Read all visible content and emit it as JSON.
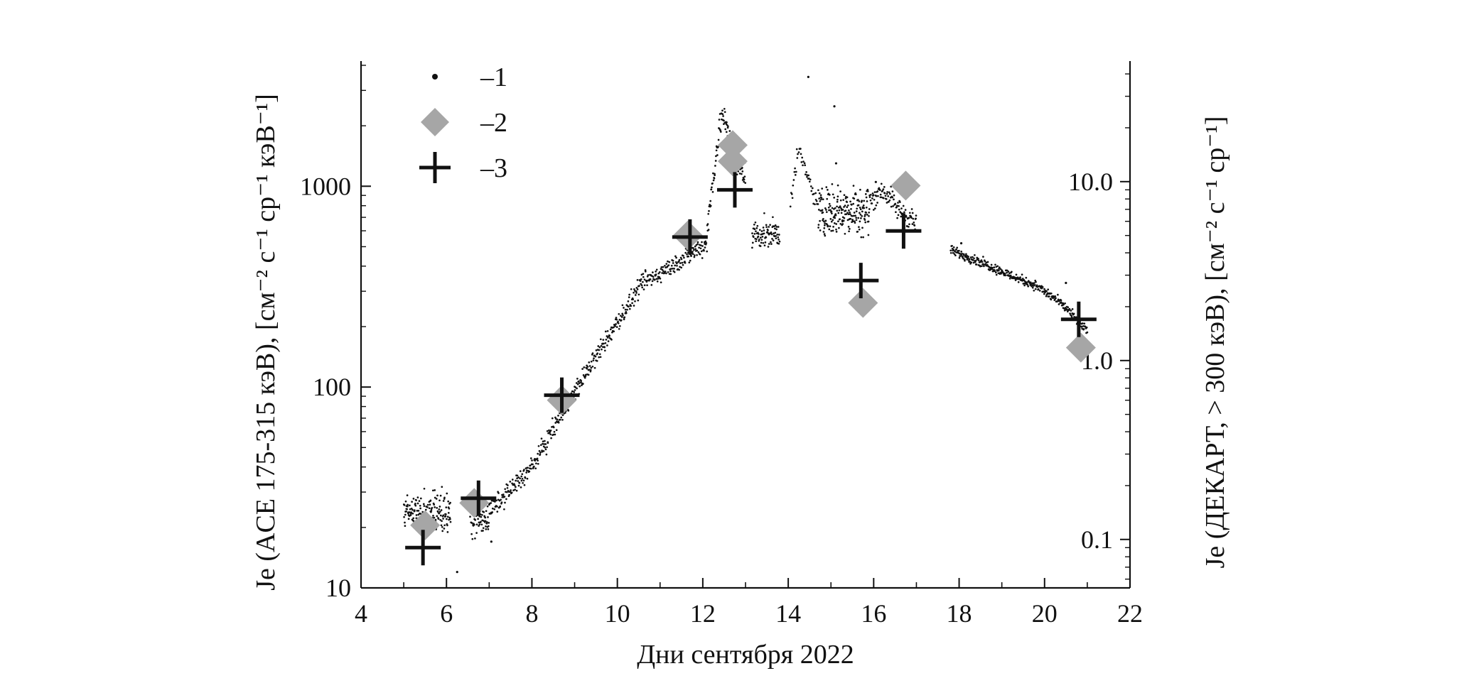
{
  "chart_data": {
    "type": "scatter",
    "xlabel": "Дни сентября 2022",
    "ylabel_left": "Je (ACE 175-315 кэВ), [см⁻² с⁻¹ ср⁻¹ кэВ⁻¹]",
    "ylabel_right": "Je (ДЕКАРТ, > 300 кэВ), [см⁻² с⁻¹ ср⁻¹]",
    "xlim": [
      4,
      22
    ],
    "ylim_left": [
      10,
      4200
    ],
    "ylim_right": [
      0.0536,
      47.2
    ],
    "yscale": "log",
    "grid": false,
    "legend_position": "top-left",
    "x_ticks": [
      4,
      6,
      8,
      10,
      12,
      14,
      16,
      18,
      20,
      22
    ],
    "y_left_ticks": [
      {
        "value": 10,
        "label": "10"
      },
      {
        "value": 100,
        "label": "100"
      },
      {
        "value": 1000,
        "label": "1000"
      }
    ],
    "y_right_ticks": [
      {
        "value": 0.1,
        "label": "0.1"
      },
      {
        "value": 1.0,
        "label": "1.0"
      },
      {
        "value": 10.0,
        "label": "10.0"
      }
    ],
    "legend": [
      {
        "key": "dots",
        "label": "–1",
        "color": "#111111"
      },
      {
        "key": "diamonds",
        "label": "–2",
        "color": "#a6a6a6"
      },
      {
        "key": "crosses",
        "label": "–3",
        "color": "#111111"
      }
    ],
    "series": [
      {
        "key": "dots",
        "axis": "left",
        "marker": "dot",
        "segments": [
          {
            "kind": "flat",
            "x": [
              5.0,
              6.1
            ],
            "y": [
              24,
              24
            ],
            "scatter": 0.12,
            "n": 170
          },
          {
            "kind": "flat",
            "x": [
              6.55,
              7.0
            ],
            "y": [
              22,
              22
            ],
            "scatter": 0.1,
            "n": 70
          },
          {
            "kind": "ramp",
            "x": [
              7.0,
              8.0,
              9.0,
              10.0,
              10.6,
              11.0,
              11.5,
              12.1
            ],
            "y": [
              24,
              40,
              95,
              210,
              330,
              370,
              430,
              520
            ],
            "scatter": 0.06,
            "n": 520
          },
          {
            "kind": "ramp",
            "x": [
              12.1,
              12.35,
              12.45,
              12.6,
              12.8,
              13.0
            ],
            "y": [
              600,
              1700,
              2300,
              1800,
              1300,
              1100
            ],
            "scatter": 0.09,
            "n": 110
          },
          {
            "kind": "flat",
            "x": [
              13.15,
              13.8
            ],
            "y": [
              580,
              580
            ],
            "scatter": 0.09,
            "n": 90
          },
          {
            "kind": "ramp",
            "x": [
              14.05,
              14.25,
              14.45,
              14.7
            ],
            "y": [
              850,
              1500,
              1100,
              800
            ],
            "scatter": 0.06,
            "n": 45
          },
          {
            "kind": "flat",
            "x": [
              14.7,
              15.9
            ],
            "y": [
              760,
              760
            ],
            "scatter": 0.15,
            "n": 210
          },
          {
            "kind": "ramp",
            "x": [
              15.9,
              16.2,
              16.6,
              17.0
            ],
            "y": [
              840,
              960,
              760,
              660
            ],
            "scatter": 0.07,
            "n": 110
          },
          {
            "kind": "ramp",
            "x": [
              17.8,
              18.5,
              19.2,
              19.8,
              20.4,
              21.0
            ],
            "y": [
              480,
              420,
              360,
              320,
              260,
              190
            ],
            "scatter": 0.03,
            "n": 340
          }
        ],
        "outliers": [
          {
            "x": 14.47,
            "y": 3500
          },
          {
            "x": 15.08,
            "y": 2500
          },
          {
            "x": 15.12,
            "y": 1300
          },
          {
            "x": 16.05,
            "y": 1050
          },
          {
            "x": 18.05,
            "y": 520
          },
          {
            "x": 20.5,
            "y": 330
          },
          {
            "x": 7.05,
            "y": 17
          },
          {
            "x": 6.25,
            "y": 12
          }
        ]
      },
      {
        "key": "diamonds",
        "axis": "right",
        "marker": "diamond",
        "x": [
          5.5,
          6.65,
          8.7,
          11.65,
          12.7,
          12.7,
          15.75,
          16.75,
          20.85
        ],
        "y": [
          0.12,
          0.16,
          0.6,
          5.0,
          16.0,
          13.0,
          2.1,
          9.5,
          1.18
        ]
      },
      {
        "key": "crosses",
        "axis": "right",
        "marker": "cross",
        "x": [
          5.45,
          6.75,
          8.7,
          11.7,
          12.75,
          15.7,
          16.7,
          20.8
        ],
        "y": [
          0.09,
          0.17,
          0.64,
          4.9,
          9.0,
          2.8,
          5.3,
          1.7
        ]
      }
    ]
  }
}
